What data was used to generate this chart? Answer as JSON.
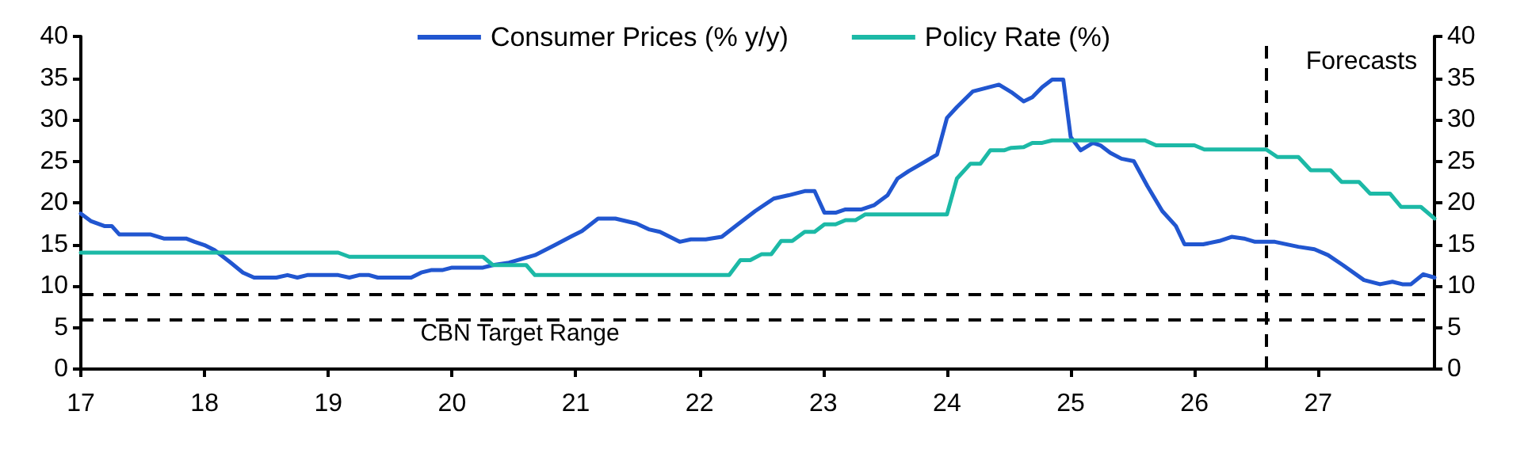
{
  "chart_data": {
    "type": "line",
    "x": [
      17.0,
      17.08,
      17.19,
      17.25,
      17.31,
      17.56,
      17.67,
      17.85,
      17.92,
      18.0,
      18.08,
      18.21,
      18.31,
      18.4,
      18.58,
      18.67,
      18.75,
      18.83,
      19.08,
      19.17,
      19.25,
      19.33,
      19.4,
      19.67,
      19.75,
      19.83,
      19.92,
      20.0,
      20.25,
      20.33,
      20.46,
      20.67,
      20.83,
      20.97,
      21.05,
      21.18,
      21.32,
      21.49,
      21.59,
      21.68,
      21.84,
      21.93,
      22.05,
      22.18,
      22.31,
      22.45,
      22.6,
      22.72,
      22.85,
      22.93,
      23.01,
      23.1,
      23.18,
      23.31,
      23.41,
      23.52,
      23.6,
      23.69,
      23.83,
      23.92,
      24.0,
      24.08,
      24.21,
      24.42,
      24.52,
      24.62,
      24.69,
      24.77,
      24.85,
      24.94,
      25.0,
      25.08,
      25.18,
      25.24,
      25.32,
      25.41,
      25.51,
      25.62,
      25.74,
      25.85,
      25.92,
      26.07,
      26.2,
      26.3,
      26.4,
      26.49,
      26.65,
      26.84,
      26.97,
      27.08,
      27.2,
      27.37,
      27.5,
      27.6,
      27.68,
      27.75,
      27.85,
      27.94
    ],
    "series": [
      {
        "name": "Consumer Prices (% y/y)",
        "color": "#2156d0",
        "values": [
          18.7,
          17.8,
          17.2,
          17.2,
          16.2,
          16.2,
          15.7,
          15.7,
          15.3,
          14.9,
          14.3,
          12.8,
          11.6,
          11.0,
          11.0,
          11.3,
          11.0,
          11.3,
          11.3,
          11.0,
          11.3,
          11.3,
          11.0,
          11.0,
          11.6,
          11.9,
          11.9,
          12.2,
          12.2,
          12.5,
          12.8,
          13.7,
          14.9,
          16.0,
          16.6,
          18.1,
          18.1,
          17.5,
          16.8,
          16.5,
          15.3,
          15.6,
          15.6,
          15.9,
          17.4,
          19.0,
          20.5,
          20.9,
          21.4,
          21.4,
          18.8,
          18.8,
          19.2,
          19.2,
          19.7,
          20.9,
          22.9,
          23.8,
          25.0,
          25.8,
          30.2,
          31.5,
          33.4,
          34.2,
          33.3,
          32.2,
          32.7,
          33.9,
          34.8,
          34.8,
          27.9,
          26.3,
          27.2,
          26.9,
          26.0,
          25.3,
          25.0,
          22.0,
          19.0,
          17.2,
          15.0,
          15.0,
          15.4,
          15.9,
          15.7,
          15.3,
          15.3,
          14.7,
          14.4,
          13.7,
          12.5,
          10.7,
          10.2,
          10.5,
          10.2,
          10.2,
          11.4,
          11.0
        ]
      },
      {
        "name": "Policy Rate (%)",
        "color": "#1cb9a6",
        "x": [
          17.0,
          19.08,
          19.17,
          20.25,
          20.33,
          20.6,
          20.67,
          22.24,
          22.33,
          22.41,
          22.5,
          22.58,
          22.66,
          22.75,
          22.85,
          22.93,
          23.01,
          23.1,
          23.18,
          23.26,
          23.34,
          24.0,
          24.08,
          24.19,
          24.27,
          24.35,
          24.46,
          24.52,
          24.62,
          24.69,
          24.77,
          24.85,
          25.6,
          25.69,
          26.0,
          26.08,
          26.58,
          26.67,
          26.84,
          26.94,
          27.1,
          27.19,
          27.33,
          27.42,
          27.58,
          27.67,
          27.83,
          27.94
        ],
        "values": [
          14.0,
          14.0,
          13.5,
          13.5,
          12.5,
          12.5,
          11.3,
          11.3,
          13.1,
          13.1,
          13.8,
          13.8,
          15.4,
          15.4,
          16.5,
          16.5,
          17.4,
          17.4,
          17.9,
          17.9,
          18.6,
          18.6,
          22.9,
          24.7,
          24.7,
          26.3,
          26.3,
          26.6,
          26.7,
          27.2,
          27.2,
          27.5,
          27.5,
          26.9,
          26.9,
          26.4,
          26.4,
          25.5,
          25.5,
          23.9,
          23.9,
          22.5,
          22.5,
          21.1,
          21.1,
          19.5,
          19.5,
          18.1
        ]
      }
    ],
    "xlim": [
      17,
      27.94
    ],
    "xticks": [
      17,
      18,
      19,
      20,
      21,
      22,
      23,
      24,
      25,
      26,
      27
    ],
    "ylim": [
      0,
      40
    ],
    "yticks": [
      0,
      5,
      10,
      15,
      20,
      25,
      30,
      35,
      40
    ],
    "y2lim": [
      0,
      40
    ],
    "y2ticks": [
      0,
      5,
      10,
      15,
      20,
      25,
      30,
      35,
      40
    ],
    "ref_lines": [
      {
        "axis": "y",
        "value": 9,
        "label": "CBN Target Range",
        "color": "#000000",
        "line_style": "dashed"
      },
      {
        "axis": "y",
        "value": 6,
        "label": null,
        "color": "#000000",
        "line_style": "dashed"
      },
      {
        "axis": "x",
        "value": 26.58,
        "label": "Forecasts",
        "color": "#000000",
        "line_style": "dashed"
      }
    ],
    "legend": "top",
    "grid": false,
    "marker": "none",
    "line_style": "solid"
  }
}
